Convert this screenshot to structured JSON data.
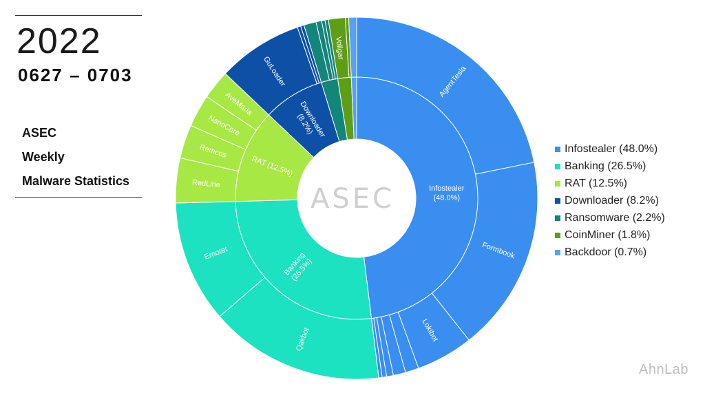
{
  "header": {
    "year": "2022",
    "dates": "0627 – 0703",
    "title_lines": [
      "ASEC",
      "Weekly",
      "Malware Statistics"
    ]
  },
  "center_logo": "ASEC",
  "brand": "AhnLab",
  "colors": {
    "Infostealer": "#3a8ef0",
    "Banking": "#1de2c2",
    "RAT": "#a8e845",
    "Downloader": "#0d50a6",
    "Ransomware": "#14857a",
    "CoinMiner": "#5e9e16",
    "Backdoor": "#58a0f5"
  },
  "legend": [
    {
      "key": "Infostealer",
      "label": "Infostealer (48.0%)"
    },
    {
      "key": "Banking",
      "label": "Banking (26.5%)"
    },
    {
      "key": "RAT",
      "label": "RAT (12.5%)"
    },
    {
      "key": "Downloader",
      "label": "Downloader (8.2%)"
    },
    {
      "key": "Ransomware",
      "label": "Ransomware (2.2%)"
    },
    {
      "key": "CoinMiner",
      "label": "CoinMiner (1.8%)"
    },
    {
      "key": "Backdoor",
      "label": "Backdoor (0.7%)"
    }
  ],
  "chart_data": {
    "type": "sunburst",
    "categories": [
      {
        "name": "Infostealer",
        "label": "Infostealer\n(48.0%)",
        "value": 48.0,
        "children": [
          {
            "name": "AgentTesla",
            "label": "AgentTesla",
            "value": 21.8
          },
          {
            "name": "Formbook",
            "label": "Formbook",
            "value": 17.5
          },
          {
            "name": "Lokibot",
            "label": "Lokibot",
            "value": 5.1
          },
          {
            "name": "",
            "value": 1.2
          },
          {
            "name": "",
            "value": 1.1
          },
          {
            "name": "",
            "value": 0.6
          },
          {
            "name": "",
            "value": 0.4
          },
          {
            "name": "",
            "value": 0.3
          }
        ]
      },
      {
        "name": "Banking",
        "label": "Banking\n(26.5%)",
        "value": 26.5,
        "children": [
          {
            "name": "Qakbot",
            "label": "Qakbot",
            "value": 15.6
          },
          {
            "name": "Emotet",
            "label": "Emotet",
            "value": 10.9
          }
        ]
      },
      {
        "name": "RAT",
        "label": "RAT (12.5%)",
        "value": 12.5,
        "children": [
          {
            "name": "RedLine",
            "label": "RedLine",
            "value": 4.0
          },
          {
            "name": "Remcos",
            "label": "Remcos",
            "value": 3.0
          },
          {
            "name": "NanoCore",
            "label": "NanoCore",
            "value": 2.9
          },
          {
            "name": "AveMaria",
            "label": "AveMaria",
            "value": 2.6
          }
        ]
      },
      {
        "name": "Downloader",
        "label": "Downloader\n(8.2%)",
        "value": 8.2,
        "children": [
          {
            "name": "GuLoader",
            "label": "GuLoader",
            "value": 7.6
          },
          {
            "name": "",
            "value": 0.3
          },
          {
            "name": "",
            "value": 0.3
          }
        ]
      },
      {
        "name": "Ransomware",
        "label": "",
        "value": 2.2,
        "children": [
          {
            "name": "",
            "value": 1.1
          },
          {
            "name": "",
            "value": 0.5
          },
          {
            "name": "",
            "value": 0.3
          },
          {
            "name": "",
            "value": 0.3
          }
        ]
      },
      {
        "name": "CoinMiner",
        "label": "",
        "value": 1.8,
        "children": [
          {
            "name": "Vollgar",
            "label": "Vollgar",
            "value": 1.5
          },
          {
            "name": "",
            "value": 0.3
          }
        ]
      },
      {
        "name": "Backdoor",
        "label": "",
        "value": 0.7,
        "children": [
          {
            "name": "",
            "value": 0.7
          }
        ]
      }
    ]
  }
}
